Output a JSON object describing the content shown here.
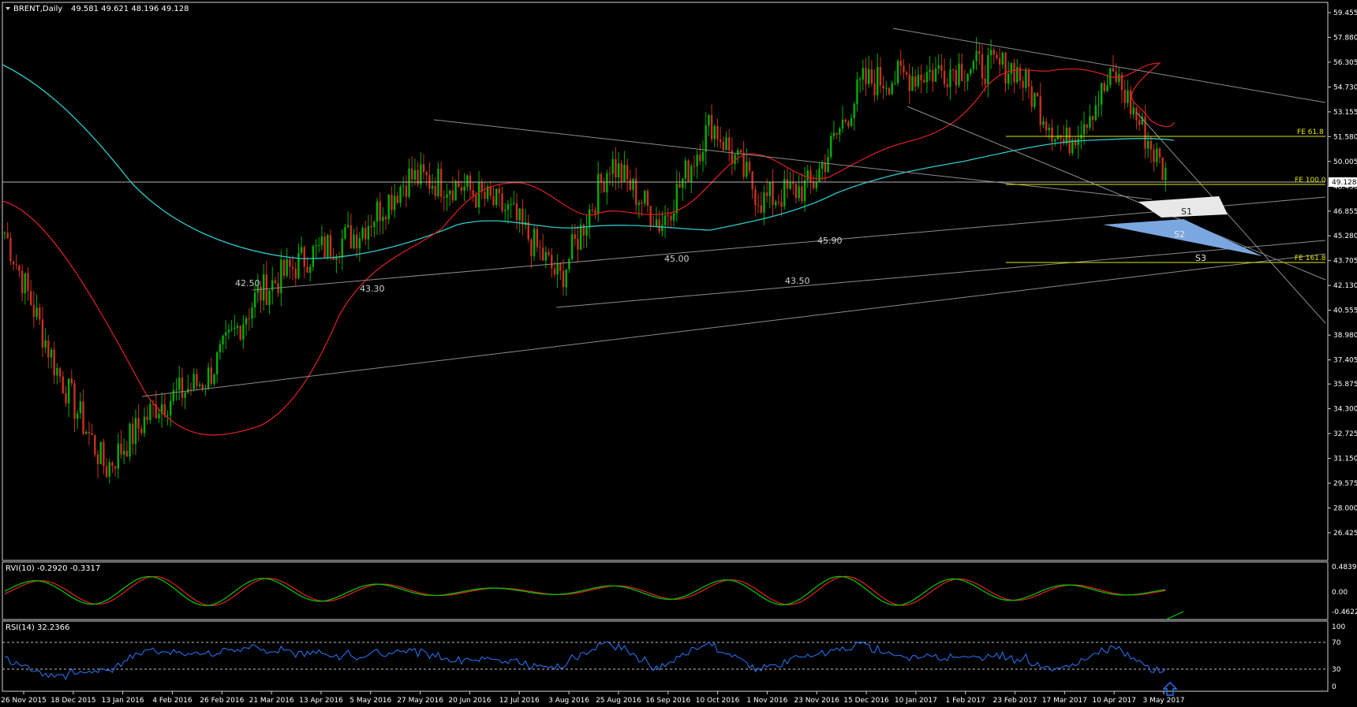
{
  "header": {
    "symbol": "BRENT,Daily",
    "ohlc": "49.581 49.621 48.196 49.128"
  },
  "rvi_label": "RVI(10) -0.2920 -0.3317",
  "rsi_label": "RSI(14) 32.2366",
  "price_axis": [
    "59.455",
    "57.880",
    "56.305",
    "54.730",
    "53.155",
    "51.580",
    "50.005",
    "48.430",
    "46.855",
    "45.280",
    "43.705",
    "42.130",
    "40.555",
    "38.980",
    "37.405",
    "35.875",
    "34.300",
    "32.725",
    "31.150",
    "29.575",
    "28.000",
    "26.425"
  ],
  "current_price": "49.128",
  "rvi_axis": [
    "0.4839",
    "0.00",
    "-0.4622"
  ],
  "rsi_axis": [
    "100",
    "70",
    "30",
    "0"
  ],
  "date_axis": [
    "26 Nov 2015",
    "18 Dec 2015",
    "13 Jan 2016",
    "4 Feb 2016",
    "26 Feb 2016",
    "21 Mar 2016",
    "13 Apr 2016",
    "5 May 2016",
    "27 May 2016",
    "20 Jun 2016",
    "12 Jul 2016",
    "3 Aug 2016",
    "25 Aug 2016",
    "16 Sep 2016",
    "10 Oct 2016",
    "1 Nov 2016",
    "23 Nov 2016",
    "15 Dec 2016",
    "10 Jan 2017",
    "1 Feb 2017",
    "23 Feb 2017",
    "17 Mar 2017",
    "10 Apr 2017",
    "3 May 2017"
  ],
  "level_labels": [
    "42.50",
    "43.30",
    "45.00",
    "43.50",
    "45.90"
  ],
  "fe_labels": [
    "FE 61.8",
    "FE 100.0",
    "FE 161.8"
  ],
  "support_labels": [
    "S1",
    "S2",
    "S3"
  ],
  "colors": {
    "bull": "#00b000",
    "bear": "#c8321e",
    "ma_fast": "#d42020",
    "ma_slow": "#2fc9c9",
    "fib": "#e6e600",
    "rsi": "#2878ff",
    "trend": "#8c8c8c",
    "rvi_green": "#00c000",
    "rvi_red": "#d82020"
  },
  "chart_data": {
    "type": "candlestick",
    "title": "BRENT,Daily",
    "ylim": [
      26.425,
      59.455
    ],
    "close_path": [
      [
        "26 Nov 2015",
        45.5
      ],
      [
        "18 Dec 2015",
        37.0
      ],
      [
        "13 Jan 2016",
        30.5
      ],
      [
        "4 Feb 2016",
        34.5
      ],
      [
        "26 Feb 2016",
        36.2
      ],
      [
        "21 Mar 2016",
        41.5
      ],
      [
        "13 Apr 2016",
        44.0
      ],
      [
        "5 May 2016",
        45.5
      ],
      [
        "27 May 2016",
        49.0
      ],
      [
        "20 Jun 2016",
        48.5
      ],
      [
        "12 Jul 2016",
        46.8
      ],
      [
        "3 Aug 2016",
        42.5
      ],
      [
        "25 Aug 2016",
        50.0
      ],
      [
        "16 Sep 2016",
        46.0
      ],
      [
        "10 Oct 2016",
        52.5
      ],
      [
        "1 Nov 2016",
        47.5
      ],
      [
        "23 Nov 2016",
        48.5
      ],
      [
        "15 Dec 2016",
        55.0
      ],
      [
        "10 Jan 2017",
        55.5
      ],
      [
        "1 Feb 2017",
        56.0
      ],
      [
        "23 Feb 2017",
        56.0
      ],
      [
        "17 Mar 2017",
        51.0
      ],
      [
        "10 Apr 2017",
        55.5
      ],
      [
        "3 May 2017",
        49.1
      ]
    ],
    "indicators": [
      "MA fast (red)",
      "MA slow (cyan)",
      "RVI(10)",
      "RSI(14)"
    ],
    "fib_levels": {
      "FE 61.8": 51.8,
      "FE 100.0": 48.9,
      "FE 161.8": 44.3
    }
  }
}
